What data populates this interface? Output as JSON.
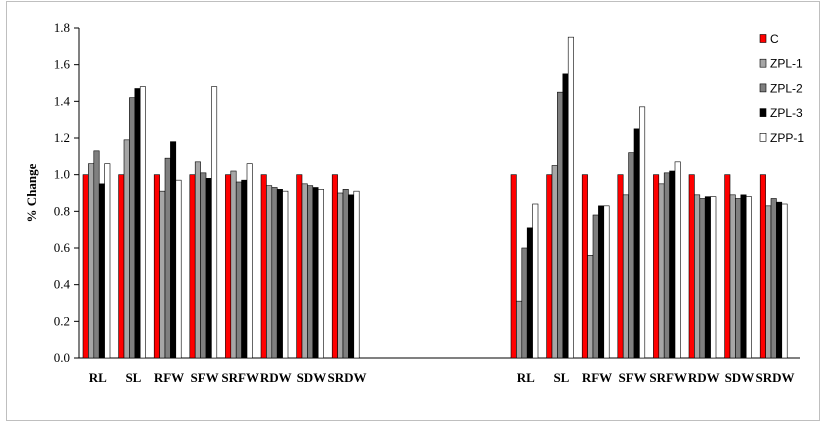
{
  "chart_data": {
    "type": "bar",
    "ylabel": "% Change",
    "ylim": [
      0,
      1.8
    ],
    "yticks": [
      "0.0",
      "0.2",
      "0.4",
      "0.6",
      "0.8",
      "1.0",
      "1.2",
      "1.4",
      "1.6",
      "1.8"
    ],
    "grid": false,
    "legend_position": "top-right",
    "colors": {
      "C": "#ff0000",
      "ZPL-1": "#a6a6a6",
      "ZPL-2": "#7f7f7f",
      "ZPL-3": "#000000",
      "ZPP-1": "#ffffff"
    },
    "groups": [
      {
        "categories": [
          "RL",
          "SL",
          "RFW",
          "SFW",
          "SRFW",
          "RDW",
          "SDW",
          "SRDW"
        ],
        "series": [
          {
            "name": "C",
            "values": [
              1.0,
              1.0,
              1.0,
              1.0,
              1.0,
              1.0,
              1.0,
              1.0
            ]
          },
          {
            "name": "ZPL-1",
            "values": [
              1.06,
              1.19,
              0.91,
              1.07,
              1.02,
              0.94,
              0.95,
              0.9
            ]
          },
          {
            "name": "ZPL-2",
            "values": [
              1.13,
              1.42,
              1.09,
              1.01,
              0.96,
              0.93,
              0.94,
              0.92
            ]
          },
          {
            "name": "ZPL-3",
            "values": [
              0.95,
              1.47,
              1.18,
              0.98,
              0.97,
              0.92,
              0.93,
              0.89
            ]
          },
          {
            "name": "ZPP-1",
            "values": [
              1.06,
              1.48,
              0.97,
              1.48,
              1.06,
              0.91,
              0.92,
              0.91
            ]
          }
        ]
      },
      {
        "categories": [
          "RL",
          "SL",
          "RFW",
          "SFW",
          "SRFW",
          "RDW",
          "SDW",
          "SRDW"
        ],
        "series": [
          {
            "name": "C",
            "values": [
              1.0,
              1.0,
              1.0,
              1.0,
              1.0,
              1.0,
              1.0,
              1.0
            ]
          },
          {
            "name": "ZPL-1",
            "values": [
              0.31,
              1.05,
              0.56,
              0.89,
              0.95,
              0.89,
              0.89,
              0.83
            ]
          },
          {
            "name": "ZPL-2",
            "values": [
              0.6,
              1.45,
              0.78,
              1.12,
              1.01,
              0.87,
              0.87,
              0.87
            ]
          },
          {
            "name": "ZPL-3",
            "values": [
              0.71,
              1.55,
              0.83,
              1.25,
              1.02,
              0.88,
              0.89,
              0.85
            ]
          },
          {
            "name": "ZPP-1",
            "values": [
              0.84,
              1.75,
              0.83,
              1.37,
              1.07,
              0.88,
              0.88,
              0.84
            ]
          }
        ]
      }
    ]
  }
}
